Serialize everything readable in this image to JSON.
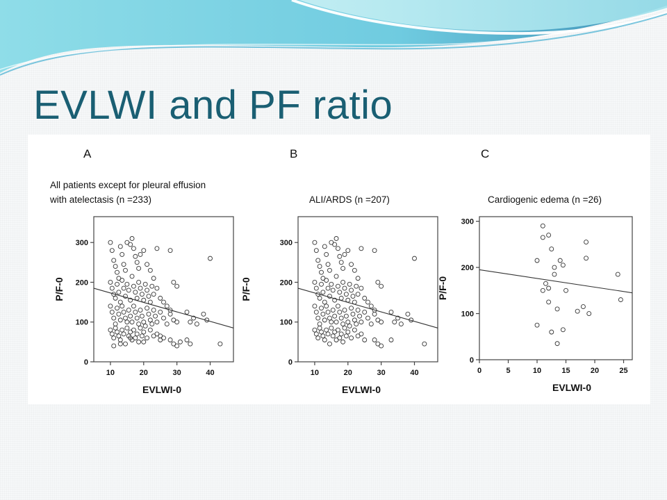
{
  "slide": {
    "title": "EVLWI and PF ratio"
  },
  "chart_data": [
    {
      "type": "scatter",
      "panel_label": "A",
      "title": "All patients except for pleural effusion with atelectasis (n =233)",
      "title_lines": [
        "All patients except for pleural effusion",
        "with atelectasis (n =233)"
      ],
      "xlabel": "EVLWI-0",
      "ylabel": "P/F-0",
      "xlim": [
        5,
        47
      ],
      "ylim": [
        0,
        365
      ],
      "xticks": [
        10,
        20,
        30,
        40
      ],
      "yticks": [
        0,
        100,
        200,
        300
      ],
      "grid": false,
      "trend_line": {
        "x": [
          5,
          47
        ],
        "y": [
          185,
          85
        ]
      },
      "points": [
        [
          10,
          300
        ],
        [
          10.5,
          280
        ],
        [
          11,
          255
        ],
        [
          11.5,
          240
        ],
        [
          12,
          225
        ],
        [
          12.5,
          210
        ],
        [
          13,
          290
        ],
        [
          13.5,
          270
        ],
        [
          14,
          245
        ],
        [
          14.5,
          230
        ],
        [
          15,
          300
        ],
        [
          16,
          295
        ],
        [
          16.5,
          310
        ],
        [
          17,
          285
        ],
        [
          17.5,
          265
        ],
        [
          18,
          250
        ],
        [
          18.5,
          235
        ],
        [
          19,
          270
        ],
        [
          20,
          280
        ],
        [
          21,
          245
        ],
        [
          22,
          230
        ],
        [
          23,
          210
        ],
        [
          24,
          285
        ],
        [
          28,
          280
        ],
        [
          40,
          260
        ],
        [
          10,
          200
        ],
        [
          10.5,
          185
        ],
        [
          11,
          170
        ],
        [
          11.5,
          160
        ],
        [
          12,
          195
        ],
        [
          12.5,
          175
        ],
        [
          13,
          150
        ],
        [
          13.5,
          205
        ],
        [
          14,
          185
        ],
        [
          14.5,
          165
        ],
        [
          15,
          195
        ],
        [
          15.5,
          180
        ],
        [
          16,
          155
        ],
        [
          16.5,
          215
        ],
        [
          17,
          190
        ],
        [
          17.5,
          175
        ],
        [
          18,
          160
        ],
        [
          18.5,
          200
        ],
        [
          19,
          185
        ],
        [
          19.5,
          170
        ],
        [
          20,
          155
        ],
        [
          20.5,
          195
        ],
        [
          21,
          180
        ],
        [
          21.5,
          165
        ],
        [
          22,
          150
        ],
        [
          22.5,
          190
        ],
        [
          23,
          170
        ],
        [
          24,
          185
        ],
        [
          25,
          160
        ],
        [
          26,
          150
        ],
        [
          27,
          140
        ],
        [
          28,
          130
        ],
        [
          29,
          200
        ],
        [
          30,
          190
        ],
        [
          10,
          140
        ],
        [
          10.5,
          125
        ],
        [
          11,
          110
        ],
        [
          11.5,
          95
        ],
        [
          12,
          135
        ],
        [
          12.5,
          120
        ],
        [
          13,
          105
        ],
        [
          13.5,
          140
        ],
        [
          14,
          125
        ],
        [
          14.5,
          110
        ],
        [
          15,
          100
        ],
        [
          15.5,
          130
        ],
        [
          16,
          115
        ],
        [
          16.5,
          100
        ],
        [
          17,
          140
        ],
        [
          17.5,
          125
        ],
        [
          18,
          110
        ],
        [
          18.5,
          95
        ],
        [
          19,
          130
        ],
        [
          19.5,
          115
        ],
        [
          20,
          100
        ],
        [
          20.5,
          90
        ],
        [
          21,
          135
        ],
        [
          21.5,
          120
        ],
        [
          22,
          105
        ],
        [
          22.5,
          95
        ],
        [
          23,
          130
        ],
        [
          23.5,
          115
        ],
        [
          24,
          100
        ],
        [
          25,
          125
        ],
        [
          26,
          110
        ],
        [
          27,
          95
        ],
        [
          28,
          120
        ],
        [
          29,
          105
        ],
        [
          30,
          100
        ],
        [
          33,
          125
        ],
        [
          34,
          100
        ],
        [
          35,
          110
        ],
        [
          36,
          95
        ],
        [
          38,
          120
        ],
        [
          39,
          105
        ],
        [
          10,
          80
        ],
        [
          10.5,
          70
        ],
        [
          11,
          60
        ],
        [
          11.5,
          85
        ],
        [
          12,
          75
        ],
        [
          12.5,
          65
        ],
        [
          13,
          55
        ],
        [
          13.5,
          80
        ],
        [
          14,
          70
        ],
        [
          14.5,
          45
        ],
        [
          15,
          85
        ],
        [
          15.5,
          65
        ],
        [
          16,
          75
        ],
        [
          16.5,
          55
        ],
        [
          17,
          80
        ],
        [
          17.5,
          60
        ],
        [
          18,
          70
        ],
        [
          18.5,
          50
        ],
        [
          19,
          85
        ],
        [
          19.5,
          65
        ],
        [
          20,
          75
        ],
        [
          21,
          60
        ],
        [
          22,
          80
        ],
        [
          23,
          65
        ],
        [
          24,
          70
        ],
        [
          25,
          55
        ],
        [
          26,
          60
        ],
        [
          28,
          55
        ],
        [
          29,
          45
        ],
        [
          30,
          40
        ],
        [
          31,
          50
        ],
        [
          33,
          55
        ],
        [
          34,
          45
        ],
        [
          43,
          45
        ],
        [
          11,
          40
        ],
        [
          13,
          45
        ],
        [
          16,
          60
        ],
        [
          20,
          50
        ],
        [
          25,
          65
        ]
      ]
    },
    {
      "type": "scatter",
      "panel_label": "B",
      "title": "ALI/ARDS (n =207)",
      "title_lines": [
        "ALI/ARDS (n =207)"
      ],
      "xlabel": "EVLWI-0",
      "ylabel": "P/F-0",
      "xlim": [
        5,
        47
      ],
      "ylim": [
        0,
        365
      ],
      "xticks": [
        10,
        20,
        30,
        40
      ],
      "yticks": [
        0,
        100,
        200,
        300
      ],
      "grid": false,
      "trend_line": {
        "x": [
          5,
          47
        ],
        "y": [
          185,
          85
        ]
      },
      "points": [
        [
          10,
          300
        ],
        [
          10.5,
          280
        ],
        [
          11,
          255
        ],
        [
          11.5,
          240
        ],
        [
          12,
          225
        ],
        [
          12.5,
          210
        ],
        [
          13,
          290
        ],
        [
          13.5,
          270
        ],
        [
          14,
          245
        ],
        [
          14.5,
          230
        ],
        [
          15,
          300
        ],
        [
          16,
          295
        ],
        [
          16.5,
          310
        ],
        [
          17,
          285
        ],
        [
          17.5,
          265
        ],
        [
          18,
          250
        ],
        [
          18.5,
          235
        ],
        [
          19,
          270
        ],
        [
          20,
          280
        ],
        [
          21,
          245
        ],
        [
          22,
          230
        ],
        [
          23,
          210
        ],
        [
          24,
          285
        ],
        [
          28,
          280
        ],
        [
          40,
          260
        ],
        [
          10,
          200
        ],
        [
          10.5,
          185
        ],
        [
          11,
          170
        ],
        [
          11.5,
          160
        ],
        [
          12,
          195
        ],
        [
          12.5,
          175
        ],
        [
          13,
          150
        ],
        [
          13.5,
          205
        ],
        [
          14,
          185
        ],
        [
          14.5,
          165
        ],
        [
          15,
          195
        ],
        [
          15.5,
          180
        ],
        [
          16,
          155
        ],
        [
          16.5,
          215
        ],
        [
          17,
          190
        ],
        [
          17.5,
          175
        ],
        [
          18,
          160
        ],
        [
          18.5,
          200
        ],
        [
          19,
          185
        ],
        [
          19.5,
          170
        ],
        [
          20,
          155
        ],
        [
          20.5,
          195
        ],
        [
          21,
          180
        ],
        [
          21.5,
          165
        ],
        [
          22,
          150
        ],
        [
          22.5,
          190
        ],
        [
          23,
          170
        ],
        [
          24,
          185
        ],
        [
          25,
          160
        ],
        [
          26,
          150
        ],
        [
          27,
          140
        ],
        [
          28,
          130
        ],
        [
          29,
          200
        ],
        [
          30,
          190
        ],
        [
          10,
          140
        ],
        [
          10.5,
          125
        ],
        [
          11,
          110
        ],
        [
          11.5,
          95
        ],
        [
          12,
          135
        ],
        [
          12.5,
          120
        ],
        [
          13,
          105
        ],
        [
          13.5,
          140
        ],
        [
          14,
          125
        ],
        [
          14.5,
          110
        ],
        [
          15,
          100
        ],
        [
          15.5,
          130
        ],
        [
          16,
          115
        ],
        [
          16.5,
          100
        ],
        [
          17,
          140
        ],
        [
          17.5,
          125
        ],
        [
          18,
          110
        ],
        [
          18.5,
          95
        ],
        [
          19,
          130
        ],
        [
          19.5,
          115
        ],
        [
          20,
          100
        ],
        [
          20.5,
          90
        ],
        [
          21,
          135
        ],
        [
          21.5,
          120
        ],
        [
          22,
          105
        ],
        [
          22.5,
          95
        ],
        [
          23,
          130
        ],
        [
          23.5,
          115
        ],
        [
          24,
          100
        ],
        [
          25,
          125
        ],
        [
          26,
          110
        ],
        [
          27,
          95
        ],
        [
          28,
          120
        ],
        [
          29,
          105
        ],
        [
          30,
          100
        ],
        [
          33,
          125
        ],
        [
          34,
          100
        ],
        [
          35,
          110
        ],
        [
          36,
          95
        ],
        [
          38,
          120
        ],
        [
          39,
          105
        ],
        [
          10,
          80
        ],
        [
          10.5,
          70
        ],
        [
          11,
          60
        ],
        [
          11.5,
          85
        ],
        [
          12,
          75
        ],
        [
          12.5,
          65
        ],
        [
          13,
          55
        ],
        [
          13.5,
          80
        ],
        [
          14,
          70
        ],
        [
          14.5,
          45
        ],
        [
          15,
          85
        ],
        [
          15.5,
          65
        ],
        [
          16,
          75
        ],
        [
          16.5,
          55
        ],
        [
          17,
          80
        ],
        [
          17.5,
          60
        ],
        [
          18,
          70
        ],
        [
          18.5,
          50
        ],
        [
          19,
          85
        ],
        [
          19.5,
          65
        ],
        [
          20,
          75
        ],
        [
          21,
          60
        ],
        [
          22,
          80
        ],
        [
          23,
          65
        ],
        [
          24,
          70
        ],
        [
          25,
          55
        ],
        [
          28,
          55
        ],
        [
          29,
          45
        ],
        [
          30,
          40
        ],
        [
          33,
          55
        ],
        [
          43,
          45
        ]
      ]
    },
    {
      "type": "scatter",
      "panel_label": "C",
      "title": "Cardiogenic edema (n =26)",
      "title_lines": [
        "Cardiogenic edema (n =26)"
      ],
      "xlabel": "EVLWI-0",
      "ylabel": "P/F-0",
      "xlim": [
        0,
        26.5
      ],
      "ylim": [
        0,
        310
      ],
      "xticks": [
        0,
        5,
        10,
        15,
        20,
        25
      ],
      "yticks": [
        0,
        100,
        200,
        300
      ],
      "grid": false,
      "trend_line": {
        "x": [
          0,
          26.5
        ],
        "y": [
          195,
          145
        ]
      },
      "points": [
        [
          11,
          290
        ],
        [
          11,
          265
        ],
        [
          12,
          270
        ],
        [
          12.5,
          240
        ],
        [
          10,
          215
        ],
        [
          14,
          215
        ],
        [
          13,
          200
        ],
        [
          14.5,
          205
        ],
        [
          18.5,
          255
        ],
        [
          18.5,
          220
        ],
        [
          24,
          185
        ],
        [
          13,
          185
        ],
        [
          11,
          150
        ],
        [
          12,
          155
        ],
        [
          12,
          125
        ],
        [
          15,
          150
        ],
        [
          13.5,
          110
        ],
        [
          17,
          105
        ],
        [
          18,
          115
        ],
        [
          19,
          100
        ],
        [
          10,
          75
        ],
        [
          12.5,
          60
        ],
        [
          14.5,
          65
        ],
        [
          13.5,
          35
        ],
        [
          24.5,
          130
        ],
        [
          11.5,
          165
        ]
      ]
    }
  ]
}
